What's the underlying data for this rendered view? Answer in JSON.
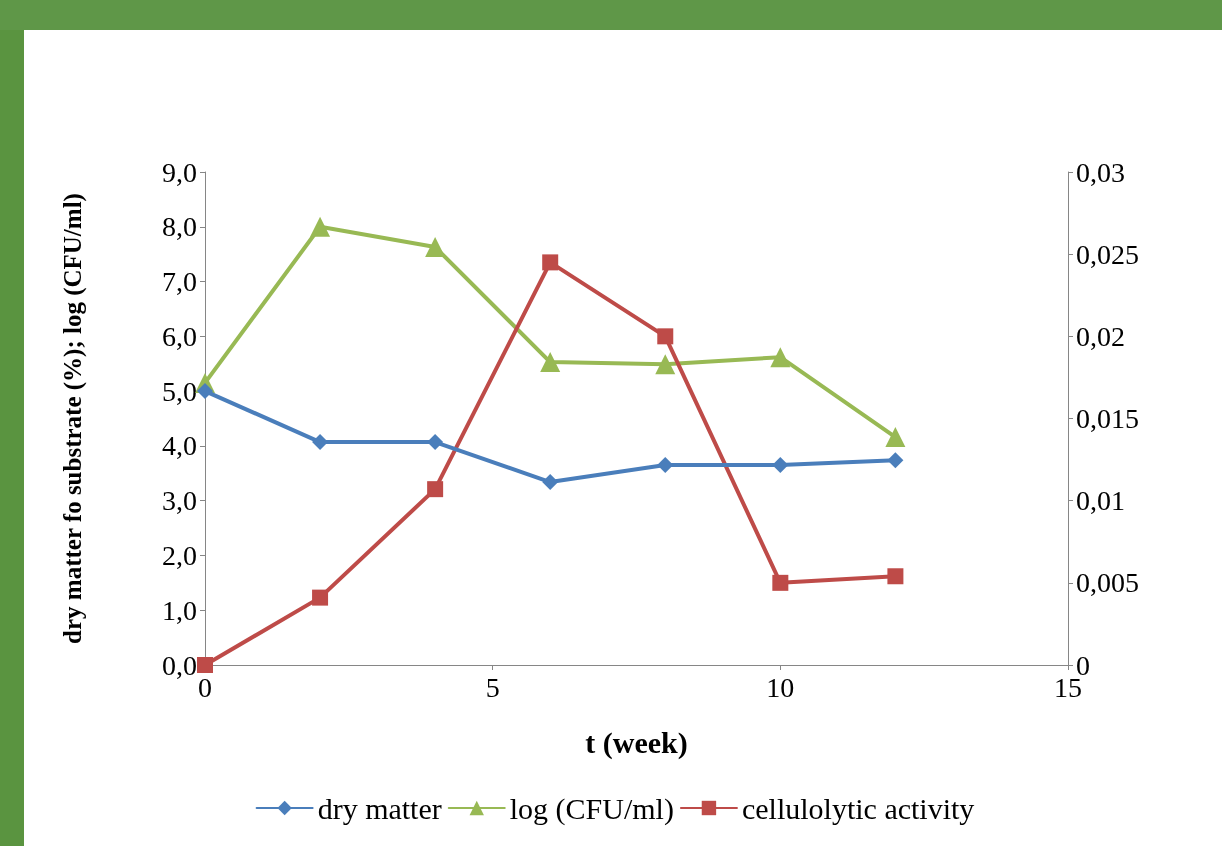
{
  "chart_data": {
    "type": "line",
    "xlabel": "t (week)",
    "ylabel": "dry matter fo substrate (%); log (CFU/ml)",
    "x": [
      0,
      2,
      4,
      6,
      8,
      10,
      12
    ],
    "xlim": [
      0,
      15
    ],
    "xticks": [
      0,
      5,
      10,
      15
    ],
    "ylim": [
      0,
      9
    ],
    "yticks": [
      {
        "value": 0,
        "label": "0,0"
      },
      {
        "value": 1,
        "label": "1,0"
      },
      {
        "value": 2,
        "label": "2,0"
      },
      {
        "value": 3,
        "label": "3,0"
      },
      {
        "value": 4,
        "label": "4,0"
      },
      {
        "value": 5,
        "label": "5,0"
      },
      {
        "value": 6,
        "label": "6,0"
      },
      {
        "value": 7,
        "label": "7,0"
      },
      {
        "value": 8,
        "label": "8,0"
      },
      {
        "value": 9,
        "label": "9,0"
      }
    ],
    "y2lim": [
      0,
      0.03
    ],
    "y2ticks": [
      0,
      {
        "value": 0.005,
        "label": "0,005"
      },
      {
        "value": 0.01,
        "label": "0,01"
      },
      {
        "value": 0.015,
        "label": "0,015"
      },
      {
        "value": 0.02,
        "label": "0,02"
      },
      {
        "value": 0.025,
        "label": "0,025"
      },
      {
        "value": 0.03,
        "label": "0,03"
      }
    ],
    "grid": false,
    "legend": "bottom",
    "series": [
      {
        "name": "dry matter",
        "color": "#4a7ebb",
        "marker": "diamond",
        "values": [
          5.0,
          4.07,
          4.07,
          3.34,
          3.65,
          3.65,
          3.74
        ]
      },
      {
        "name": "log (CFU/ml)",
        "color": "#98b954",
        "marker": "triangle",
        "values": [
          5.15,
          8.0,
          7.63,
          5.53,
          5.49,
          5.62,
          4.16
        ]
      },
      {
        "name": "cellulolytic activity",
        "color": "#be4b48",
        "marker": "square",
        "axis": "y2",
        "values": [
          0,
          0.0041,
          0.0107,
          0.0245,
          0.02,
          0.005,
          0.0054
        ]
      }
    ]
  }
}
